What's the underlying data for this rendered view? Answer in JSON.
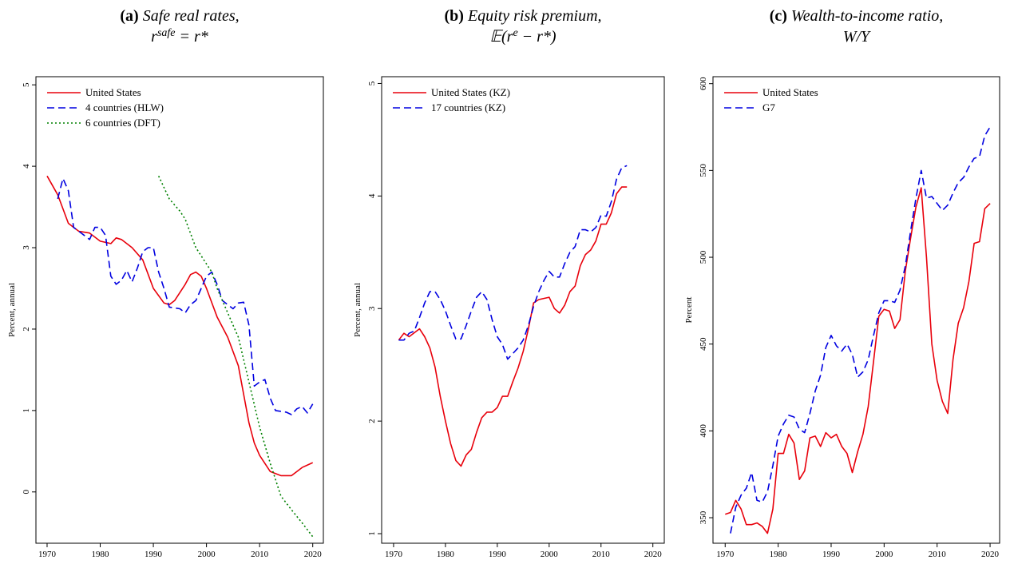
{
  "chart_data": [
    {
      "type": "line",
      "label": "(a)",
      "title": "Safe real rates,",
      "subtitle": [
        {
          "text": "r"
        },
        {
          "text": "safe",
          "sup": true
        },
        {
          "text": " = r*"
        }
      ],
      "ylabel": "Percent, annual",
      "xlim": [
        1967.9,
        2022
      ],
      "ylim": [
        -0.63,
        5.1
      ],
      "xticks": [
        1970,
        1980,
        1990,
        2000,
        2010,
        2020
      ],
      "yticks": [
        0,
        1,
        2,
        3,
        4,
        5
      ],
      "legend": "upper left",
      "series": [
        {
          "name": "United States",
          "color": "#e8000b",
          "dash": "solid",
          "x": [
            1970,
            1972,
            1974,
            1975,
            1976,
            1978,
            1980,
            1982,
            1983,
            1984,
            1986,
            1988,
            1990,
            1992,
            1993,
            1994,
            1996,
            1997,
            1998,
            1999,
            2000,
            2002,
            2004,
            2006,
            2008,
            2009,
            2010,
            2012,
            2014,
            2016,
            2018,
            2020
          ],
          "values": [
            3.88,
            3.65,
            3.3,
            3.25,
            3.2,
            3.18,
            3.08,
            3.05,
            3.12,
            3.1,
            3.0,
            2.85,
            2.5,
            2.32,
            2.3,
            2.35,
            2.55,
            2.67,
            2.7,
            2.65,
            2.5,
            2.15,
            1.9,
            1.55,
            0.85,
            0.6,
            0.45,
            0.25,
            0.2,
            0.2,
            0.3,
            0.36
          ]
        },
        {
          "name": "4 countries (HLW)",
          "color": "#0000e0",
          "dash": "dashed",
          "x": [
            1972,
            1973,
            1974,
            1975,
            1977,
            1978,
            1979,
            1980,
            1981,
            1982,
            1983,
            1984,
            1985,
            1986,
            1987,
            1988,
            1989,
            1990,
            1991,
            1992,
            1993,
            1995,
            1996,
            1997,
            1998,
            1999,
            2000,
            2001,
            2002,
            2003,
            2005,
            2006,
            2007,
            2008,
            2009,
            2010,
            2011,
            2012,
            2013,
            2015,
            2016,
            2017,
            2018,
            2019,
            2020
          ],
          "values": [
            3.6,
            3.85,
            3.7,
            3.25,
            3.15,
            3.1,
            3.25,
            3.25,
            3.15,
            2.65,
            2.55,
            2.6,
            2.72,
            2.58,
            2.75,
            2.95,
            3.0,
            3.0,
            2.7,
            2.5,
            2.27,
            2.25,
            2.2,
            2.3,
            2.35,
            2.5,
            2.65,
            2.7,
            2.55,
            2.35,
            2.25,
            2.32,
            2.33,
            2.05,
            1.3,
            1.35,
            1.38,
            1.15,
            1.0,
            0.98,
            0.95,
            1.02,
            1.05,
            0.97,
            1.08
          ]
        },
        {
          "name": "6 countries (DFT)",
          "color": "#008000",
          "dash": "dotted",
          "x": [
            1991,
            1993,
            1995,
            1996,
            1998,
            2000,
            2001,
            2002,
            2004,
            2006,
            2008,
            2010,
            2012,
            2014,
            2016,
            2018,
            2020
          ],
          "values": [
            3.88,
            3.6,
            3.45,
            3.35,
            3.0,
            2.8,
            2.7,
            2.5,
            2.2,
            1.9,
            1.35,
            0.8,
            0.35,
            -0.05,
            -0.22,
            -0.38,
            -0.55
          ]
        }
      ]
    },
    {
      "type": "line",
      "label": "(b)",
      "title": "Equity risk premium,",
      "subtitle": [
        {
          "text": "𝔼(r"
        },
        {
          "text": "e",
          "sup": true
        },
        {
          "text": " − r*)"
        }
      ],
      "ylabel": "Percent, annual",
      "xlim": [
        1967.7,
        2022.2
      ],
      "ylim": [
        0.915,
        5.06
      ],
      "xticks": [
        1970,
        1980,
        1990,
        2000,
        2010,
        2020
      ],
      "yticks": [
        1,
        2,
        3,
        4,
        5
      ],
      "legend": "upper left",
      "series": [
        {
          "name": "United States (KZ)",
          "color": "#e8000b",
          "dash": "solid",
          "x": [
            1971,
            1972,
            1973,
            1975,
            1976,
            1977,
            1978,
            1979,
            1980,
            1981,
            1982,
            1983,
            1984,
            1985,
            1986,
            1987,
            1988,
            1989,
            1990,
            1991,
            1992,
            1993,
            1994,
            1995,
            1996,
            1997,
            1998,
            2000,
            2001,
            2002,
            2003,
            2004,
            2005,
            2006,
            2007,
            2008,
            2009,
            2010,
            2011,
            2012,
            2013,
            2014,
            2015
          ],
          "values": [
            2.72,
            2.78,
            2.75,
            2.82,
            2.75,
            2.65,
            2.48,
            2.22,
            2.0,
            1.8,
            1.65,
            1.6,
            1.7,
            1.75,
            1.9,
            2.03,
            2.08,
            2.08,
            2.12,
            2.22,
            2.22,
            2.35,
            2.47,
            2.62,
            2.82,
            3.05,
            3.08,
            3.1,
            3.0,
            2.96,
            3.03,
            3.15,
            3.2,
            3.38,
            3.48,
            3.52,
            3.6,
            3.75,
            3.75,
            3.85,
            4.02,
            4.08,
            4.08
          ]
        },
        {
          "name": "17 countries (KZ)",
          "color": "#0000e0",
          "dash": "dashed",
          "x": [
            1971,
            1972,
            1973,
            1974,
            1975,
            1976,
            1977,
            1978,
            1979,
            1980,
            1981,
            1982,
            1983,
            1984,
            1985,
            1986,
            1987,
            1988,
            1989,
            1990,
            1991,
            1992,
            1993,
            1994,
            1995,
            1996,
            1997,
            1998,
            1999,
            2000,
            2001,
            2002,
            2003,
            2004,
            2005,
            2006,
            2007,
            2008,
            2009,
            2010,
            2011,
            2012,
            2013,
            2014,
            2015
          ],
          "values": [
            2.72,
            2.72,
            2.78,
            2.8,
            2.92,
            3.05,
            3.15,
            3.15,
            3.08,
            2.98,
            2.85,
            2.73,
            2.73,
            2.85,
            2.98,
            3.1,
            3.15,
            3.08,
            2.9,
            2.75,
            2.68,
            2.55,
            2.6,
            2.65,
            2.72,
            2.85,
            3.02,
            3.15,
            3.25,
            3.33,
            3.28,
            3.28,
            3.4,
            3.5,
            3.55,
            3.7,
            3.7,
            3.68,
            3.72,
            3.83,
            3.82,
            3.95,
            4.15,
            4.25,
            4.27
          ]
        }
      ]
    },
    {
      "type": "line",
      "label": "(c)",
      "title": "Wealth-to-income ratio,",
      "subtitle": [
        {
          "text": "W/Y"
        }
      ],
      "ylabel": "Percent",
      "xlim": [
        1967.7,
        2021.8
      ],
      "ylim": [
        335.3,
        604
      ],
      "xticks": [
        1970,
        1980,
        1990,
        2000,
        2010,
        2020
      ],
      "yticks": [
        350,
        400,
        450,
        500,
        550,
        600
      ],
      "legend": "upper left",
      "series": [
        {
          "name": "United States",
          "color": "#e8000b",
          "dash": "solid",
          "x": [
            1970,
            1971,
            1972,
            1973,
            1974,
            1975,
            1976,
            1977,
            1978,
            1979,
            1980,
            1981,
            1982,
            1983,
            1984,
            1985,
            1986,
            1987,
            1988,
            1989,
            1990,
            1991,
            1992,
            1993,
            1994,
            1995,
            1996,
            1997,
            1998,
            1999,
            2000,
            2001,
            2002,
            2003,
            2004,
            2005,
            2006,
            2007,
            2008,
            2009,
            2010,
            2011,
            2012,
            2013,
            2014,
            2015,
            2016,
            2017,
            2018,
            2019,
            2020
          ],
          "values": [
            352,
            353,
            360,
            355,
            346,
            346,
            347,
            345,
            341,
            355,
            387,
            387,
            398,
            393,
            372,
            377,
            396,
            397,
            391,
            399,
            396,
            398,
            391,
            387,
            376,
            388,
            398,
            414,
            440,
            466,
            470,
            469,
            459,
            464,
            492,
            511,
            529,
            540,
            500,
            450,
            429,
            417,
            410,
            441,
            462,
            471,
            486,
            508,
            509,
            528,
            531
          ]
        },
        {
          "name": "G7",
          "color": "#0000e0",
          "dash": "dashed",
          "x": [
            1971,
            1972,
            1973,
            1974,
            1975,
            1976,
            1977,
            1978,
            1979,
            1980,
            1981,
            1982,
            1983,
            1984,
            1985,
            1986,
            1987,
            1988,
            1989,
            1990,
            1991,
            1992,
            1993,
            1994,
            1995,
            1996,
            1997,
            1998,
            1999,
            2000,
            2001,
            2002,
            2003,
            2004,
            2005,
            2006,
            2007,
            2008,
            2009,
            2010,
            2011,
            2012,
            2013,
            2014,
            2015,
            2016,
            2017,
            2018,
            2019,
            2020
          ],
          "values": [
            341,
            356,
            363,
            367,
            376,
            360,
            359,
            365,
            380,
            397,
            404,
            409,
            408,
            401,
            399,
            410,
            423,
            432,
            448,
            455,
            449,
            446,
            450,
            444,
            431,
            434,
            441,
            455,
            468,
            475,
            475,
            474,
            481,
            495,
            515,
            534,
            550,
            534,
            535,
            531,
            527,
            530,
            537,
            543,
            546,
            552,
            557,
            558,
            570,
            575
          ]
        }
      ]
    }
  ]
}
